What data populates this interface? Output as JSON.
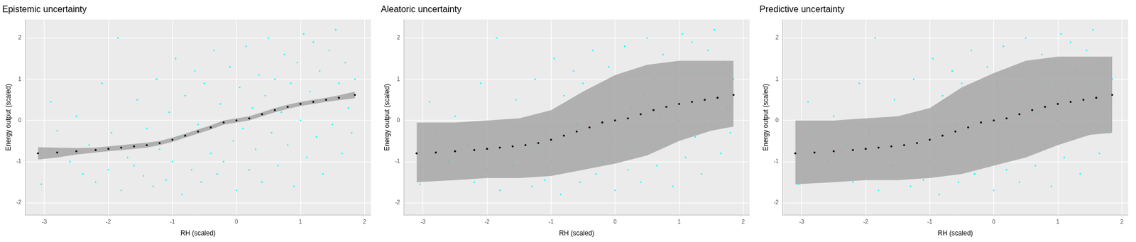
{
  "chart_data": [
    {
      "type": "scatter",
      "title": "Epistemic uncertainty",
      "x_label": "RH (scaled)",
      "y_label": "Energy output (scaled)",
      "xlim": [
        -3.3,
        2.1
      ],
      "xticks": [
        -3,
        -2,
        -1,
        0,
        1,
        2
      ],
      "ylim": [
        -2.3,
        2.45
      ],
      "yticks": [
        -2,
        -1,
        0,
        1,
        2
      ],
      "grid": true,
      "points": {
        "color": "#00FFFF",
        "x": [
          -3.05,
          -2.9,
          -2.8,
          -2.6,
          -2.5,
          -2.4,
          -2.3,
          -2.2,
          -2.1,
          -2.0,
          -1.95,
          -1.85,
          -1.8,
          -1.7,
          -1.6,
          -1.55,
          -1.45,
          -1.4,
          -1.3,
          -1.25,
          -1.2,
          -1.1,
          -1.05,
          -1.0,
          -0.95,
          -0.9,
          -0.85,
          -0.8,
          -0.7,
          -0.65,
          -0.6,
          -0.55,
          -0.5,
          -0.4,
          -0.35,
          -0.3,
          -0.25,
          -0.2,
          -0.1,
          -0.05,
          0.0,
          0.05,
          0.1,
          0.15,
          0.2,
          0.25,
          0.3,
          0.35,
          0.4,
          0.45,
          0.5,
          0.55,
          0.6,
          0.65,
          0.7,
          0.75,
          0.8,
          0.85,
          0.9,
          0.95,
          1.0,
          1.05,
          1.1,
          1.15,
          1.2,
          1.25,
          1.3,
          1.35,
          1.4,
          1.45,
          1.5,
          1.55,
          1.6,
          1.65,
          1.7,
          1.75,
          1.8,
          1.85
        ],
        "y": [
          -1.55,
          0.45,
          -0.25,
          -1.0,
          0.1,
          -1.3,
          -0.6,
          -1.5,
          0.9,
          -1.2,
          -0.3,
          2.0,
          -1.7,
          -0.9,
          -1.1,
          0.5,
          -1.35,
          -0.2,
          -1.6,
          1.0,
          -0.7,
          -1.45,
          0.2,
          -1.0,
          1.5,
          -0.4,
          -1.8,
          0.6,
          -1.2,
          1.2,
          -0.1,
          -1.5,
          0.9,
          -0.8,
          1.7,
          -1.3,
          0.4,
          -1.0,
          1.3,
          -0.5,
          -1.7,
          0.8,
          -0.2,
          1.8,
          -1.2,
          0.3,
          -0.7,
          1.1,
          -1.5,
          0.6,
          2.0,
          -0.3,
          1.0,
          -1.1,
          0.2,
          1.6,
          -0.6,
          0.9,
          -1.6,
          1.4,
          0.0,
          2.1,
          -0.9,
          0.7,
          1.9,
          -0.4,
          1.2,
          -1.3,
          0.5,
          1.7,
          -0.1,
          2.2,
          0.9,
          -0.8,
          1.4,
          0.3,
          -0.3,
          1.0
        ]
      },
      "band": {
        "color": "#A6A6A6",
        "x": [
          -3.1,
          -2.8,
          -2.5,
          -2.2,
          -2.0,
          -1.8,
          -1.6,
          -1.4,
          -1.2,
          -1.0,
          -0.8,
          -0.6,
          -0.4,
          -0.2,
          0.0,
          0.2,
          0.4,
          0.6,
          0.8,
          1.0,
          1.2,
          1.4,
          1.6,
          1.85
        ],
        "lower": [
          -0.95,
          -0.9,
          -0.83,
          -0.78,
          -0.75,
          -0.72,
          -0.69,
          -0.66,
          -0.6,
          -0.52,
          -0.42,
          -0.32,
          -0.22,
          -0.1,
          -0.05,
          0.0,
          0.1,
          0.2,
          0.28,
          0.35,
          0.4,
          0.45,
          0.49,
          0.54
        ],
        "upper": [
          -0.65,
          -0.66,
          -0.67,
          -0.66,
          -0.63,
          -0.6,
          -0.57,
          -0.54,
          -0.5,
          -0.42,
          -0.32,
          -0.22,
          -0.12,
          0.0,
          0.05,
          0.1,
          0.2,
          0.3,
          0.38,
          0.45,
          0.5,
          0.55,
          0.61,
          0.7
        ]
      },
      "mean": {
        "color": "#000000",
        "x": [
          -3.1,
          -2.8,
          -2.5,
          -2.2,
          -2.0,
          -1.8,
          -1.6,
          -1.4,
          -1.2,
          -1.0,
          -0.8,
          -0.6,
          -0.4,
          -0.2,
          0.0,
          0.2,
          0.4,
          0.6,
          0.8,
          1.0,
          1.2,
          1.4,
          1.6,
          1.85
        ],
        "y": [
          -0.8,
          -0.78,
          -0.75,
          -0.72,
          -0.69,
          -0.66,
          -0.63,
          -0.6,
          -0.55,
          -0.47,
          -0.37,
          -0.27,
          -0.17,
          -0.05,
          0.0,
          0.05,
          0.15,
          0.25,
          0.33,
          0.4,
          0.45,
          0.5,
          0.55,
          0.62
        ]
      }
    },
    {
      "type": "scatter",
      "title": "Aleatoric uncertainty",
      "x_label": "RH (scaled)",
      "y_label": "Energy output (scaled)",
      "xlim": [
        -3.3,
        2.1
      ],
      "xticks": [
        -3,
        -2,
        -1,
        0,
        1,
        2
      ],
      "ylim": [
        -2.3,
        2.45
      ],
      "yticks": [
        -2,
        -1,
        0,
        1,
        2
      ],
      "grid": true,
      "points": {
        "color": "#00FFFF",
        "x": [
          -3.05,
          -2.9,
          -2.8,
          -2.6,
          -2.5,
          -2.4,
          -2.3,
          -2.2,
          -2.1,
          -2.0,
          -1.95,
          -1.85,
          -1.8,
          -1.7,
          -1.6,
          -1.55,
          -1.45,
          -1.4,
          -1.3,
          -1.25,
          -1.2,
          -1.1,
          -1.05,
          -1.0,
          -0.95,
          -0.9,
          -0.85,
          -0.8,
          -0.7,
          -0.65,
          -0.6,
          -0.55,
          -0.5,
          -0.4,
          -0.35,
          -0.3,
          -0.25,
          -0.2,
          -0.1,
          -0.05,
          0.0,
          0.05,
          0.1,
          0.15,
          0.2,
          0.25,
          0.3,
          0.35,
          0.4,
          0.45,
          0.5,
          0.55,
          0.6,
          0.65,
          0.7,
          0.75,
          0.8,
          0.85,
          0.9,
          0.95,
          1.0,
          1.05,
          1.1,
          1.15,
          1.2,
          1.25,
          1.3,
          1.35,
          1.4,
          1.45,
          1.5,
          1.55,
          1.6,
          1.65,
          1.7,
          1.75,
          1.8,
          1.85
        ],
        "y": [
          -1.55,
          0.45,
          -0.25,
          -1.0,
          0.1,
          -1.3,
          -0.6,
          -1.5,
          0.9,
          -1.2,
          -0.3,
          2.0,
          -1.7,
          -0.9,
          -1.1,
          0.5,
          -1.35,
          -0.2,
          -1.6,
          1.0,
          -0.7,
          -1.45,
          0.2,
          -1.0,
          1.5,
          -0.4,
          -1.8,
          0.6,
          -1.2,
          1.2,
          -0.1,
          -1.5,
          0.9,
          -0.8,
          1.7,
          -1.3,
          0.4,
          -1.0,
          1.3,
          -0.5,
          -1.7,
          0.8,
          -0.2,
          1.8,
          -1.2,
          0.3,
          -0.7,
          1.1,
          -1.5,
          0.6,
          2.0,
          -0.3,
          1.0,
          -1.1,
          0.2,
          1.6,
          -0.6,
          0.9,
          -1.6,
          1.4,
          0.0,
          2.1,
          -0.9,
          0.7,
          1.9,
          -0.4,
          1.2,
          -1.3,
          0.5,
          1.7,
          -0.1,
          2.2,
          0.9,
          -0.8,
          1.4,
          0.3,
          -0.3,
          1.0
        ]
      },
      "band": {
        "color": "#A6A6A6",
        "x": [
          -3.1,
          -2.5,
          -2.0,
          -1.5,
          -1.0,
          -0.5,
          0.0,
          0.5,
          1.0,
          1.5,
          1.85
        ],
        "lower": [
          -1.5,
          -1.45,
          -1.4,
          -1.4,
          -1.35,
          -1.2,
          -1.05,
          -0.85,
          -0.5,
          -0.25,
          -0.15
        ],
        "upper": [
          -0.05,
          -0.05,
          0.0,
          0.05,
          0.25,
          0.7,
          1.1,
          1.35,
          1.45,
          1.45,
          1.45
        ]
      },
      "mean": {
        "color": "#000000",
        "x": [
          -3.1,
          -2.8,
          -2.5,
          -2.2,
          -2.0,
          -1.8,
          -1.6,
          -1.4,
          -1.2,
          -1.0,
          -0.8,
          -0.6,
          -0.4,
          -0.2,
          0.0,
          0.2,
          0.4,
          0.6,
          0.8,
          1.0,
          1.2,
          1.4,
          1.6,
          1.85
        ],
        "y": [
          -0.8,
          -0.78,
          -0.75,
          -0.72,
          -0.69,
          -0.66,
          -0.63,
          -0.6,
          -0.55,
          -0.47,
          -0.37,
          -0.27,
          -0.17,
          -0.05,
          0.0,
          0.05,
          0.15,
          0.25,
          0.33,
          0.4,
          0.45,
          0.5,
          0.55,
          0.62
        ]
      }
    },
    {
      "type": "scatter",
      "title": "Predictive uncertainty",
      "x_label": "RH (scaled)",
      "y_label": "Energy output (scaled)",
      "xlim": [
        -3.3,
        2.1
      ],
      "xticks": [
        -3,
        -2,
        -1,
        0,
        1,
        2
      ],
      "ylim": [
        -2.3,
        2.45
      ],
      "yticks": [
        -2,
        -1,
        0,
        1,
        2
      ],
      "grid": true,
      "points": {
        "color": "#00FFFF",
        "x": [
          -3.05,
          -2.9,
          -2.8,
          -2.6,
          -2.5,
          -2.4,
          -2.3,
          -2.2,
          -2.1,
          -2.0,
          -1.95,
          -1.85,
          -1.8,
          -1.7,
          -1.6,
          -1.55,
          -1.45,
          -1.4,
          -1.3,
          -1.25,
          -1.2,
          -1.1,
          -1.05,
          -1.0,
          -0.95,
          -0.9,
          -0.85,
          -0.8,
          -0.7,
          -0.65,
          -0.6,
          -0.55,
          -0.5,
          -0.4,
          -0.35,
          -0.3,
          -0.25,
          -0.2,
          -0.1,
          -0.05,
          0.0,
          0.05,
          0.1,
          0.15,
          0.2,
          0.25,
          0.3,
          0.35,
          0.4,
          0.45,
          0.5,
          0.55,
          0.6,
          0.65,
          0.7,
          0.75,
          0.8,
          0.85,
          0.9,
          0.95,
          1.0,
          1.05,
          1.1,
          1.15,
          1.2,
          1.25,
          1.3,
          1.35,
          1.4,
          1.45,
          1.5,
          1.55,
          1.6,
          1.65,
          1.7,
          1.75,
          1.8,
          1.85
        ],
        "y": [
          -1.55,
          0.45,
          -0.25,
          -1.0,
          0.1,
          -1.3,
          -0.6,
          -1.5,
          0.9,
          -1.2,
          -0.3,
          2.0,
          -1.7,
          -0.9,
          -1.1,
          0.5,
          -1.35,
          -0.2,
          -1.6,
          1.0,
          -0.7,
          -1.45,
          0.2,
          -1.0,
          1.5,
          -0.4,
          -1.8,
          0.6,
          -1.2,
          1.2,
          -0.1,
          -1.5,
          0.9,
          -0.8,
          1.7,
          -1.3,
          0.4,
          -1.0,
          1.3,
          -0.5,
          -1.7,
          0.8,
          -0.2,
          1.8,
          -1.2,
          0.3,
          -0.7,
          1.1,
          -1.5,
          0.6,
          2.0,
          -0.3,
          1.0,
          -1.1,
          0.2,
          1.6,
          -0.6,
          0.9,
          -1.6,
          1.4,
          0.0,
          2.1,
          -0.9,
          0.7,
          1.9,
          -0.4,
          1.2,
          -1.3,
          0.5,
          1.7,
          -0.1,
          2.2,
          0.9,
          -0.8,
          1.4,
          0.3,
          -0.3,
          1.0
        ]
      },
      "band": {
        "color": "#A6A6A6",
        "x": [
          -3.1,
          -2.5,
          -2.0,
          -1.5,
          -1.0,
          -0.5,
          0.0,
          0.5,
          1.0,
          1.5,
          1.85
        ],
        "lower": [
          -1.55,
          -1.5,
          -1.45,
          -1.45,
          -1.4,
          -1.3,
          -1.1,
          -0.9,
          -0.6,
          -0.35,
          -0.3
        ],
        "upper": [
          0.0,
          0.0,
          0.05,
          0.1,
          0.3,
          0.8,
          1.15,
          1.45,
          1.55,
          1.55,
          1.55
        ]
      },
      "mean": {
        "color": "#000000",
        "x": [
          -3.1,
          -2.8,
          -2.5,
          -2.2,
          -2.0,
          -1.8,
          -1.6,
          -1.4,
          -1.2,
          -1.0,
          -0.8,
          -0.6,
          -0.4,
          -0.2,
          0.0,
          0.2,
          0.4,
          0.6,
          0.8,
          1.0,
          1.2,
          1.4,
          1.6,
          1.85
        ],
        "y": [
          -0.8,
          -0.78,
          -0.75,
          -0.72,
          -0.69,
          -0.66,
          -0.63,
          -0.6,
          -0.55,
          -0.47,
          -0.37,
          -0.27,
          -0.17,
          -0.05,
          0.0,
          0.05,
          0.15,
          0.25,
          0.33,
          0.4,
          0.45,
          0.5,
          0.55,
          0.62
        ]
      }
    }
  ]
}
